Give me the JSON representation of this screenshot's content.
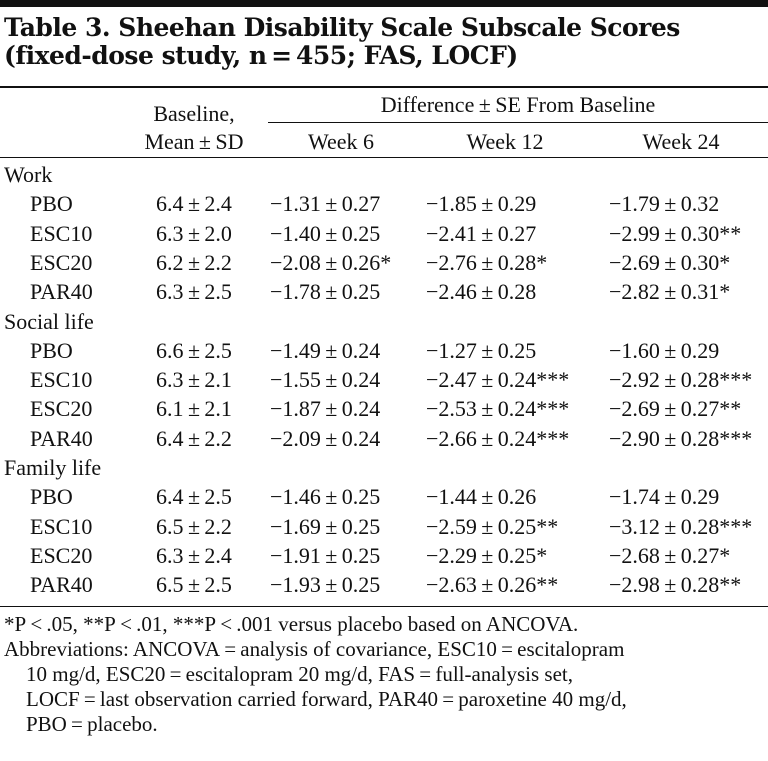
{
  "table": {
    "title": "Table 3. Sheehan Disability Scale Subscale Scores (fixed-dose study, n = 455; FAS, LOCF)",
    "header": {
      "baseline_line1": "Baseline,",
      "baseline_line2": "Mean ± SD",
      "group_label": "Difference ± SE From Baseline",
      "week6": "Week 6",
      "week12": "Week 12",
      "week24": "Week 24"
    },
    "sections": [
      {
        "label": "Work",
        "rows": [
          {
            "group": "PBO",
            "baseline": "6.4 ± 2.4",
            "w6": "−1.31 ± 0.27",
            "w12": "−1.85 ± 0.29",
            "w24": "−1.79 ± 0.32"
          },
          {
            "group": "ESC10",
            "baseline": "6.3 ± 2.0",
            "w6": "−1.40 ± 0.25",
            "w12": "−2.41 ± 0.27",
            "w24": "−2.99 ± 0.30**"
          },
          {
            "group": "ESC20",
            "baseline": "6.2 ± 2.2",
            "w6": "−2.08 ± 0.26*",
            "w12": "−2.76 ± 0.28*",
            "w24": "−2.69 ± 0.30*"
          },
          {
            "group": "PAR40",
            "baseline": "6.3 ± 2.5",
            "w6": "−1.78 ± 0.25",
            "w12": "−2.46 ± 0.28",
            "w24": "−2.82 ± 0.31*"
          }
        ]
      },
      {
        "label": "Social life",
        "rows": [
          {
            "group": "PBO",
            "baseline": "6.6 ± 2.5",
            "w6": "−1.49 ± 0.24",
            "w12": "−1.27 ± 0.25",
            "w24": "−1.60 ± 0.29"
          },
          {
            "group": "ESC10",
            "baseline": "6.3 ± 2.1",
            "w6": "−1.55 ± 0.24",
            "w12": "−2.47 ± 0.24***",
            "w24": "−2.92 ± 0.28***"
          },
          {
            "group": "ESC20",
            "baseline": "6.1 ± 2.1",
            "w6": "−1.87 ± 0.24",
            "w12": "−2.53 ± 0.24***",
            "w24": "−2.69 ± 0.27**"
          },
          {
            "group": "PAR40",
            "baseline": "6.4 ± 2.2",
            "w6": "−2.09 ± 0.24",
            "w12": "−2.66 ± 0.24***",
            "w24": "−2.90 ± 0.28***"
          }
        ]
      },
      {
        "label": "Family life",
        "rows": [
          {
            "group": "PBO",
            "baseline": "6.4 ± 2.5",
            "w6": "−1.46 ± 0.25",
            "w12": "−1.44 ± 0.26",
            "w24": "−1.74 ± 0.29"
          },
          {
            "group": "ESC10",
            "baseline": "6.5 ± 2.2",
            "w6": "−1.69 ± 0.25",
            "w12": "−2.59 ± 0.25**",
            "w24": "−3.12 ± 0.28***"
          },
          {
            "group": "ESC20",
            "baseline": "6.3 ± 2.4",
            "w6": "−1.91 ± 0.25",
            "w12": "−2.29 ± 0.25*",
            "w24": "−2.68 ± 0.27*"
          },
          {
            "group": "PAR40",
            "baseline": "6.5 ± 2.5",
            "w6": "−1.93 ± 0.25",
            "w12": "−2.63 ± 0.26**",
            "w24": "−2.98 ± 0.28**"
          }
        ]
      }
    ],
    "footnote_significance": "*P < .05, **P < .01, ***P < .001 versus placebo based on ANCOVA.",
    "abbreviations_line1": "Abbreviations: ANCOVA = analysis of covariance, ESC10 = escitalopram",
    "abbreviations_line2": "10 mg/d, ESC20 = escitalopram 20 mg/d, FAS = full-analysis set,",
    "abbreviations_line3": "LOCF = last observation carried forward, PAR40 = paroxetine 40 mg/d,",
    "abbreviations_line4": "PBO = placebo."
  }
}
